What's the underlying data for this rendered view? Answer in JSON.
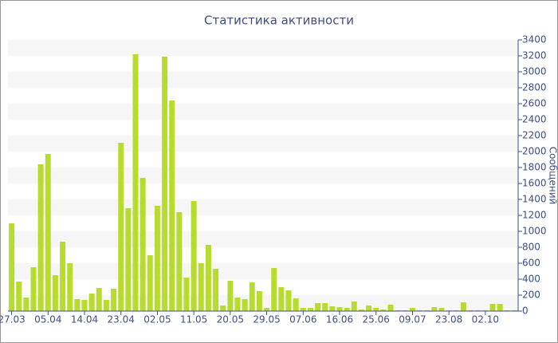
{
  "chart_data": {
    "type": "bar",
    "title": "Статистика активности",
    "y_axis_label": "Сообщений",
    "categories": [
      "27.03",
      null,
      null,
      null,
      null,
      "05.04",
      null,
      null,
      null,
      null,
      "14.04",
      null,
      null,
      null,
      null,
      "23.04",
      null,
      null,
      null,
      null,
      "02.05",
      null,
      null,
      null,
      null,
      "11.05",
      null,
      null,
      null,
      null,
      "20.05",
      null,
      null,
      null,
      null,
      "29.05",
      null,
      null,
      null,
      null,
      "07.06",
      null,
      null,
      null,
      null,
      "16.06",
      null,
      null,
      null,
      null,
      "25.06",
      null,
      null,
      null,
      null,
      "09.07",
      null,
      null,
      null,
      null,
      "23.08",
      null,
      null,
      null,
      null,
      "02.10",
      null,
      null,
      null,
      null
    ],
    "values": [
      1100,
      370,
      170,
      550,
      1840,
      1970,
      450,
      870,
      600,
      150,
      140,
      220,
      290,
      140,
      280,
      2110,
      1290,
      3220,
      1670,
      700,
      1320,
      3190,
      2640,
      1240,
      420,
      1380,
      600,
      830,
      530,
      70,
      380,
      170,
      150,
      360,
      250,
      40,
      540,
      300,
      260,
      160,
      40,
      40,
      100,
      100,
      60,
      50,
      40,
      120,
      20,
      70,
      40,
      20,
      80,
      10,
      10,
      40,
      10,
      10,
      50,
      40,
      10,
      10,
      110,
      10,
      10,
      10,
      90,
      90,
      10,
      10
    ],
    "color": "#b8dc2e",
    "ylim": [
      0,
      3400
    ],
    "yticks": [
      0,
      200,
      400,
      600,
      800,
      1000,
      1200,
      1400,
      1600,
      1800,
      2000,
      2200,
      2400,
      2600,
      2800,
      3000,
      3200,
      3400
    ],
    "grid": "bands"
  }
}
